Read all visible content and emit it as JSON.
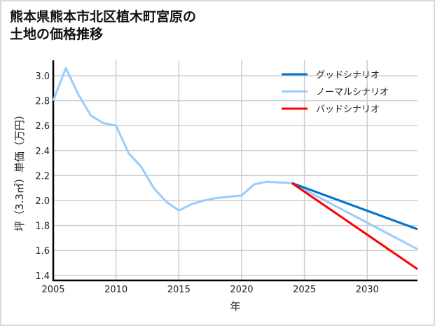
{
  "chart_data": {
    "type": "line",
    "title_lines": [
      "熊本県熊本市北区植木町宮原の",
      "土地の価格推移"
    ],
    "xlabel": "年",
    "ylabel": "坪（3.3㎡）単価（万円）",
    "xlim": [
      2005,
      2034
    ],
    "ylim": [
      1.4,
      3.15
    ],
    "xticks": [
      2005,
      2010,
      2015,
      2020,
      2025,
      2030
    ],
    "yticks": [
      1.4,
      1.6,
      1.8,
      2.0,
      2.2,
      2.4,
      2.6,
      2.8,
      3.0
    ],
    "grid": true,
    "legend_position": "top-right",
    "series": [
      {
        "name": "グッドシナリオ",
        "color": "#0072cc",
        "x": [
          2024,
          2034
        ],
        "y": [
          2.14,
          1.77
        ]
      },
      {
        "name": "ノーマルシナリオ",
        "color": "#99ccff",
        "x": [
          2005,
          2006,
          2007,
          2008,
          2009,
          2010,
          2011,
          2012,
          2013,
          2014,
          2015,
          2016,
          2017,
          2018,
          2019,
          2020,
          2021,
          2022,
          2023,
          2024,
          2034
        ],
        "y": [
          2.8,
          3.06,
          2.85,
          2.68,
          2.62,
          2.6,
          2.38,
          2.27,
          2.1,
          1.99,
          1.92,
          1.97,
          2.0,
          2.02,
          2.03,
          2.04,
          2.13,
          2.15,
          2.145,
          2.14,
          1.61
        ]
      },
      {
        "name": "バッドシナリオ",
        "color": "#ff0000",
        "x": [
          2024,
          2034
        ],
        "y": [
          2.14,
          1.45
        ]
      }
    ]
  }
}
